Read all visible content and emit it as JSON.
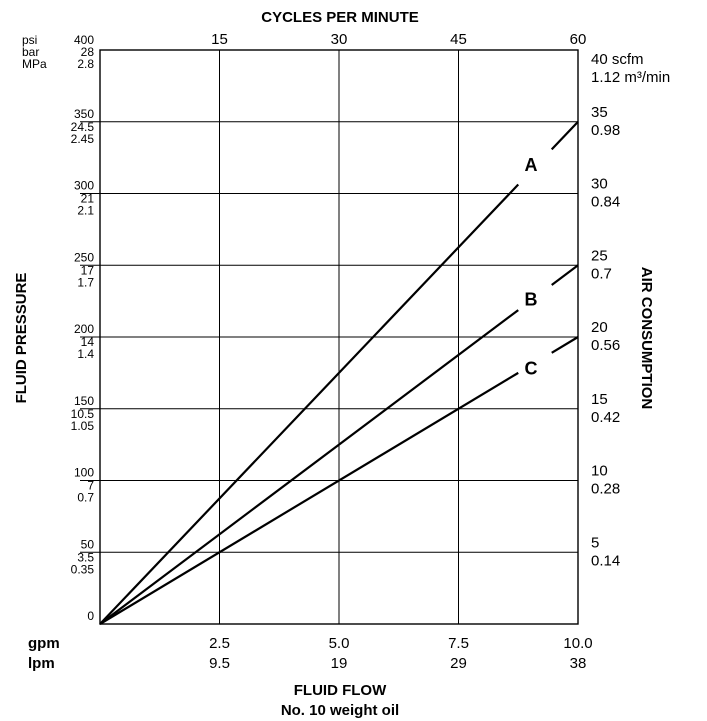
{
  "chart_data": {
    "type": "line",
    "title_top": "CYCLES PER MINUTE",
    "xlabel": "FLUID FLOW",
    "xlabel_sub": "No. 10 weight oil",
    "ylabel_left": "FLUID PRESSURE",
    "ylabel_right": "AIR CONSUMPTION",
    "grid": true,
    "x_units": [
      "gpm",
      "lpm"
    ],
    "x_ticks_gpm": [
      "2.5",
      "5.0",
      "7.5",
      "10.0"
    ],
    "x_ticks_lpm": [
      "9.5",
      "19",
      "29",
      "38"
    ],
    "xlim_gpm": [
      0,
      10
    ],
    "top_ticks": [
      "15",
      "30",
      "45",
      "60"
    ],
    "left_units": [
      "psi",
      "bar",
      "MPa"
    ],
    "left_ticks": [
      {
        "psi": "0",
        "bar": "",
        "mpa": ""
      },
      {
        "psi": "50",
        "bar": "3.5",
        "mpa": "0.35"
      },
      {
        "psi": "100",
        "bar": "7",
        "mpa": "0.7"
      },
      {
        "psi": "150",
        "bar": "10.5",
        "mpa": "1.05"
      },
      {
        "psi": "200",
        "bar": "14",
        "mpa": "1.4"
      },
      {
        "psi": "250",
        "bar": "17",
        "mpa": "1.7"
      },
      {
        "psi": "300",
        "bar": "21",
        "mpa": "2.1"
      },
      {
        "psi": "350",
        "bar": "24.5",
        "mpa": "2.45"
      },
      {
        "psi": "400",
        "bar": "28",
        "mpa": "2.8"
      }
    ],
    "ylim_psi": [
      0,
      400
    ],
    "right_ticks": [
      {
        "scfm": "5",
        "m3": "0.14"
      },
      {
        "scfm": "10",
        "m3": "0.28"
      },
      {
        "scfm": "15",
        "m3": "0.42"
      },
      {
        "scfm": "20",
        "m3": "0.56"
      },
      {
        "scfm": "25",
        "m3": "0.7"
      },
      {
        "scfm": "30",
        "m3": "0.84"
      },
      {
        "scfm": "35",
        "m3": "0.98"
      }
    ],
    "right_top": {
      "scfm": "40 scfm",
      "m3": "1.12 m³/min"
    },
    "series": [
      {
        "name": "A",
        "x": [
          0,
          10
        ],
        "y": [
          0,
          350
        ],
        "label_at": {
          "x": 9.1,
          "y": 320
        }
      },
      {
        "name": "B",
        "x": [
          0,
          10
        ],
        "y": [
          0,
          250
        ],
        "label_at": {
          "x": 9.1,
          "y": 226
        }
      },
      {
        "name": "C",
        "x": [
          0,
          10
        ],
        "y": [
          0,
          200
        ],
        "label_at": {
          "x": 9.1,
          "y": 178
        }
      }
    ]
  }
}
